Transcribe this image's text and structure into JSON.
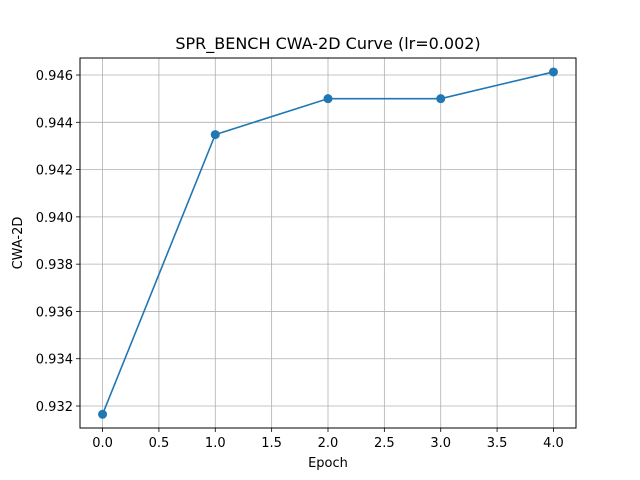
{
  "chart_data": {
    "type": "line",
    "title": "SPR_BENCH CWA-2D Curve (lr=0.002)",
    "xlabel": "Epoch",
    "ylabel": "CWA-2D",
    "x": [
      0.0,
      1.0,
      2.0,
      3.0,
      4.0
    ],
    "series": [
      {
        "values": [
          0.93165,
          0.94348,
          0.945,
          0.945,
          0.94613
        ]
      }
    ],
    "xlim": [
      -0.2,
      4.2
    ],
    "ylim": [
      0.93107,
      0.94672
    ],
    "xticks": [
      "0.0",
      "0.5",
      "1.0",
      "1.5",
      "2.0",
      "2.5",
      "3.0",
      "3.5",
      "4.0"
    ],
    "yticks": [
      "0.932",
      "0.934",
      "0.936",
      "0.938",
      "0.940",
      "0.942",
      "0.944",
      "0.946"
    ],
    "grid": true,
    "line_color": "#1f77b4",
    "marker": "circle"
  }
}
